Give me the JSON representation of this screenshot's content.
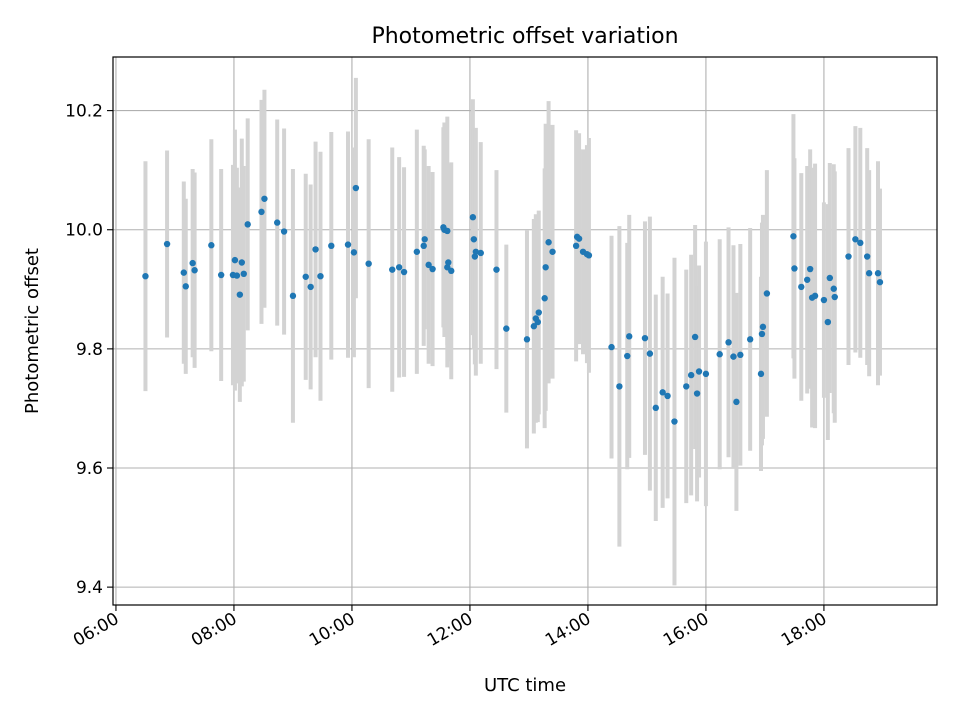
{
  "chart_data": {
    "type": "scatter",
    "title": "Photometric offset variation",
    "xlabel": "UTC time",
    "ylabel": "Photometric offset",
    "x_axis": {
      "kind": "time",
      "range": [
        "05:57",
        "19:55"
      ],
      "ticks": [
        "06:00",
        "08:00",
        "10:00",
        "12:00",
        "14:00",
        "16:00",
        "18:00"
      ]
    },
    "y_axis": {
      "range": [
        9.37,
        10.29
      ],
      "ticks": [
        "9.4",
        "9.6",
        "9.8",
        "10.0",
        "10.2"
      ]
    },
    "grid": true,
    "colors": {
      "points": "#1f77b4",
      "errorbars": "#d3d3d3",
      "grid": "#b0b0b0"
    },
    "series": [
      {
        "x": [
          "06:30",
          "06:52",
          "07:09",
          "07:11",
          "07:18",
          "07:20",
          "07:37",
          "07:47",
          "07:59",
          "08:01",
          "08:03",
          "08:06",
          "08:08",
          "08:10",
          "08:14",
          "08:28",
          "08:31",
          "08:44",
          "08:51",
          "09:00",
          "09:13",
          "09:18",
          "09:23",
          "09:28",
          "09:39",
          "09:56",
          "10:02",
          "10:04",
          "10:17",
          "10:41",
          "10:48",
          "10:53",
          "11:06",
          "11:13",
          "11:14",
          "11:18",
          "11:22",
          "11:33",
          "11:34",
          "11:37",
          "11:37",
          "11:38",
          "11:41",
          "12:03",
          "12:04",
          "12:05",
          "12:06",
          "12:11",
          "12:27",
          "12:37",
          "12:58",
          "13:05",
          "13:07",
          "13:09",
          "13:10",
          "13:16",
          "13:17",
          "13:20",
          "13:24",
          "13:48",
          "13:49",
          "13:51",
          "13:55",
          "13:59",
          "14:01",
          "14:24",
          "14:32",
          "14:40",
          "14:42",
          "14:58",
          "15:03",
          "15:09",
          "15:16",
          "15:21",
          "15:28",
          "15:40",
          "15:45",
          "15:49",
          "15:51",
          "15:53",
          "16:00",
          "16:14",
          "16:23",
          "16:28",
          "16:31",
          "16:35",
          "16:45",
          "16:56",
          "16:57",
          "16:58",
          "17:02",
          "17:29",
          "17:30",
          "17:37",
          "17:43",
          "17:46",
          "17:48",
          "17:51",
          "18:00",
          "18:04",
          "18:06",
          "18:10",
          "18:11",
          "18:25",
          "18:32",
          "18:37",
          "18:44",
          "18:46",
          "18:55",
          "18:57"
        ],
        "y": [
          9.922,
          9.976,
          9.928,
          9.905,
          9.944,
          9.932,
          9.974,
          9.924,
          9.924,
          9.949,
          9.923,
          9.891,
          9.945,
          9.926,
          10.009,
          10.03,
          10.052,
          10.012,
          9.997,
          9.889,
          9.921,
          9.904,
          9.967,
          9.922,
          9.973,
          9.975,
          9.962,
          10.07,
          9.943,
          9.933,
          9.937,
          9.929,
          9.963,
          9.973,
          9.984,
          9.941,
          9.934,
          10.004,
          10.0,
          9.998,
          9.937,
          9.945,
          9.931,
          10.021,
          9.984,
          9.955,
          9.963,
          9.961,
          9.933,
          9.834,
          9.816,
          9.838,
          9.851,
          9.845,
          9.861,
          9.885,
          9.937,
          9.979,
          9.963,
          9.973,
          9.988,
          9.985,
          9.963,
          9.959,
          9.957,
          9.803,
          9.737,
          9.788,
          9.821,
          9.818,
          9.792,
          9.701,
          9.727,
          9.721,
          9.678,
          9.737,
          9.756,
          9.82,
          9.725,
          9.762,
          9.758,
          9.791,
          9.811,
          9.787,
          9.711,
          9.79,
          9.816,
          9.758,
          9.825,
          9.837,
          9.893,
          9.989,
          9.935,
          9.904,
          9.916,
          9.934,
          9.886,
          9.889,
          9.882,
          9.845,
          9.919,
          9.901,
          9.887,
          9.955,
          9.984,
          9.978,
          9.955,
          9.927,
          9.927,
          9.912
        ],
        "err": [
          0.193,
          0.157,
          0.153,
          0.147,
          0.158,
          0.164,
          0.178,
          0.178,
          0.185,
          0.219,
          0.181,
          0.18,
          0.208,
          0.181,
          0.178,
          0.188,
          0.183,
          0.173,
          0.173,
          0.213,
          0.173,
          0.172,
          0.181,
          0.209,
          0.191,
          0.19,
          0.176,
          0.185,
          0.209,
          0.205,
          0.185,
          0.176,
          0.205,
          0.168,
          0.151,
          0.166,
          0.163,
          0.168,
          0.18,
          0.192,
          0.168,
          0.166,
          0.182,
          0.198,
          0.185,
          0.181,
          0.208,
          0.186,
          0.167,
          0.141,
          0.183,
          0.18,
          0.175,
          0.168,
          0.171,
          0.218,
          0.241,
          0.237,
          0.213,
          0.194,
          0.163,
          0.177,
          0.172,
          0.183,
          0.197,
          0.187,
          0.269,
          0.19,
          0.204,
          0.196,
          0.23,
          0.19,
          0.194,
          0.172,
          0.275,
          0.196,
          0.202,
          0.188,
          0.181,
          0.178,
          0.222,
          0.193,
          0.193,
          0.187,
          0.183,
          0.186,
          0.187,
          0.163,
          0.187,
          0.188,
          0.207,
          0.205,
          0.185,
          0.191,
          0.191,
          0.201,
          0.218,
          0.222,
          0.164,
          0.198,
          0.193,
          0.209,
          0.211,
          0.182,
          0.19,
          0.193,
          0.182,
          0.173,
          0.188,
          0.157
        ]
      }
    ]
  }
}
